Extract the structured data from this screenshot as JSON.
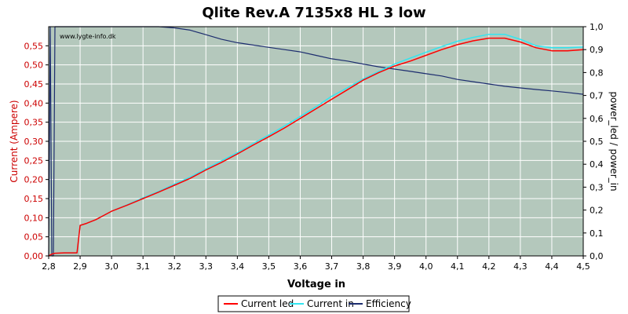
{
  "chart_data": {
    "type": "line",
    "title": "Qlite Rev.A 7135x8 HL 3 low",
    "watermark": "www.lygte-info.dk",
    "xlabel": "Voltage in",
    "ylabel_left": "Current (Ampere)",
    "ylabel_right": "power_led / power_in",
    "xlim": [
      2.8,
      4.5
    ],
    "ylim_left": [
      0,
      0.6
    ],
    "ylim_right": [
      0,
      1.0
    ],
    "x_ticks": [
      "2,8",
      "2,9",
      "3,0",
      "3,1",
      "3,2",
      "3,3",
      "3,4",
      "3,5",
      "3,6",
      "3,7",
      "3,8",
      "3,9",
      "4,0",
      "4,1",
      "4,2",
      "4,3",
      "4,4",
      "4,5"
    ],
    "y_left_ticks": [
      "0,00",
      "0,05",
      "0,10",
      "0,15",
      "0,20",
      "0,25",
      "0,30",
      "0,35",
      "0,40",
      "0,45",
      "0,50",
      "0,55"
    ],
    "y_right_ticks": [
      "0,0",
      "0,1",
      "0,2",
      "0,3",
      "0,4",
      "0,5",
      "0,6",
      "0,7",
      "0,8",
      "0,9",
      "1,0"
    ],
    "grid": true,
    "legend_position": "bottom-center",
    "colors": {
      "plot_bg": "#b4c8bc",
      "grid": "#ffffff",
      "current_led": "#ff0000",
      "current_in": "#33e5f0",
      "efficiency": "#1c2c6e",
      "left_axis_text": "#cc0000"
    },
    "series": [
      {
        "name": "Current led",
        "axis": "left",
        "points": [
          [
            2.8,
            0.0
          ],
          [
            2.81,
            0.005
          ],
          [
            2.82,
            0.007
          ],
          [
            2.85,
            0.008
          ],
          [
            2.89,
            0.008
          ],
          [
            2.9,
            0.08
          ],
          [
            2.92,
            0.085
          ],
          [
            2.95,
            0.095
          ],
          [
            3.0,
            0.117
          ],
          [
            3.05,
            0.133
          ],
          [
            3.1,
            0.15
          ],
          [
            3.15,
            0.167
          ],
          [
            3.2,
            0.185
          ],
          [
            3.25,
            0.203
          ],
          [
            3.3,
            0.225
          ],
          [
            3.35,
            0.245
          ],
          [
            3.4,
            0.267
          ],
          [
            3.45,
            0.29
          ],
          [
            3.5,
            0.312
          ],
          [
            3.55,
            0.335
          ],
          [
            3.6,
            0.36
          ],
          [
            3.65,
            0.385
          ],
          [
            3.7,
            0.41
          ],
          [
            3.75,
            0.435
          ],
          [
            3.8,
            0.46
          ],
          [
            3.85,
            0.48
          ],
          [
            3.9,
            0.497
          ],
          [
            3.95,
            0.51
          ],
          [
            4.0,
            0.525
          ],
          [
            4.05,
            0.54
          ],
          [
            4.1,
            0.553
          ],
          [
            4.15,
            0.563
          ],
          [
            4.2,
            0.57
          ],
          [
            4.25,
            0.57
          ],
          [
            4.3,
            0.56
          ],
          [
            4.35,
            0.545
          ],
          [
            4.4,
            0.537
          ],
          [
            4.45,
            0.537
          ],
          [
            4.5,
            0.54
          ]
        ]
      },
      {
        "name": "Current in",
        "axis": "left",
        "points": [
          [
            2.8,
            0.0
          ],
          [
            2.81,
            0.005
          ],
          [
            2.82,
            0.007
          ],
          [
            2.85,
            0.008
          ],
          [
            2.89,
            0.008
          ],
          [
            2.9,
            0.08
          ],
          [
            2.92,
            0.085
          ],
          [
            2.95,
            0.095
          ],
          [
            3.0,
            0.117
          ],
          [
            3.05,
            0.134
          ],
          [
            3.1,
            0.152
          ],
          [
            3.15,
            0.169
          ],
          [
            3.2,
            0.188
          ],
          [
            3.25,
            0.206
          ],
          [
            3.3,
            0.228
          ],
          [
            3.35,
            0.249
          ],
          [
            3.4,
            0.27
          ],
          [
            3.45,
            0.294
          ],
          [
            3.5,
            0.316
          ],
          [
            3.55,
            0.34
          ],
          [
            3.6,
            0.365
          ],
          [
            3.65,
            0.39
          ],
          [
            3.7,
            0.418
          ],
          [
            3.75,
            0.44
          ],
          [
            3.8,
            0.463
          ],
          [
            3.85,
            0.483
          ],
          [
            3.9,
            0.502
          ],
          [
            3.95,
            0.518
          ],
          [
            4.0,
            0.533
          ],
          [
            4.05,
            0.548
          ],
          [
            4.1,
            0.562
          ],
          [
            4.15,
            0.572
          ],
          [
            4.2,
            0.58
          ],
          [
            4.25,
            0.58
          ],
          [
            4.3,
            0.567
          ],
          [
            4.35,
            0.55
          ],
          [
            4.4,
            0.545
          ],
          [
            4.45,
            0.545
          ],
          [
            4.5,
            0.547
          ]
        ]
      },
      {
        "name": "Efficiency",
        "axis": "right",
        "points": [
          [
            2.8,
            0.0
          ],
          [
            2.805,
            1.0
          ],
          [
            2.81,
            0.0
          ],
          [
            2.815,
            0.0
          ],
          [
            2.82,
            1.0
          ],
          [
            2.9,
            1.0
          ],
          [
            3.15,
            1.0
          ],
          [
            3.2,
            0.995
          ],
          [
            3.25,
            0.985
          ],
          [
            3.3,
            0.965
          ],
          [
            3.35,
            0.945
          ],
          [
            3.4,
            0.93
          ],
          [
            3.45,
            0.92
          ],
          [
            3.5,
            0.91
          ],
          [
            3.55,
            0.9
          ],
          [
            3.6,
            0.89
          ],
          [
            3.65,
            0.875
          ],
          [
            3.7,
            0.86
          ],
          [
            3.75,
            0.85
          ],
          [
            3.8,
            0.837
          ],
          [
            3.85,
            0.825
          ],
          [
            3.9,
            0.815
          ],
          [
            3.95,
            0.805
          ],
          [
            4.0,
            0.795
          ],
          [
            4.05,
            0.785
          ],
          [
            4.1,
            0.77
          ],
          [
            4.15,
            0.76
          ],
          [
            4.2,
            0.75
          ],
          [
            4.25,
            0.74
          ],
          [
            4.3,
            0.733
          ],
          [
            4.35,
            0.726
          ],
          [
            4.4,
            0.72
          ],
          [
            4.45,
            0.713
          ],
          [
            4.5,
            0.705
          ]
        ]
      }
    ]
  }
}
